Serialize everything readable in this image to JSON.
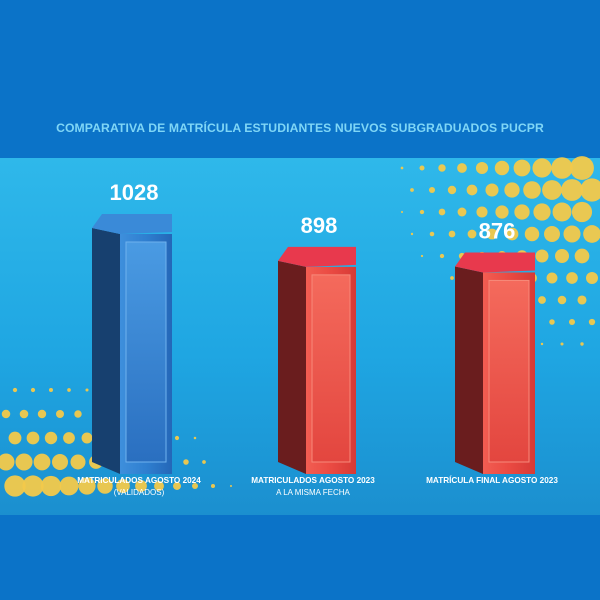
{
  "chart_data": {
    "type": "bar",
    "title": "COMPARATIVA DE MATRÍCULA ESTUDIANTES NUEVOS SUBGRADUADOS PUCPR",
    "categories": [
      [
        "MATRICULADOS AGOSTO 2024",
        "(VALIDADOS)"
      ],
      [
        "MATRICULADOS AGOSTO 2023",
        "A LA MISMA FECHA"
      ],
      [
        "MATRÍCULA FINAL AGOSTO 2023"
      ]
    ],
    "values": [
      1028,
      898,
      876
    ],
    "value_labels": [
      "1028",
      "898",
      "876"
    ],
    "xlabel": "",
    "ylabel": "",
    "grid": false
  },
  "colors": {
    "background": "#0b73c8",
    "panel": "#22aae4",
    "title": "#7fd6f6",
    "dots": "#f3c94a",
    "bar_2024": "#2b78c9",
    "bar_2023": "#e8453f",
    "label_text": "#ffffff"
  }
}
